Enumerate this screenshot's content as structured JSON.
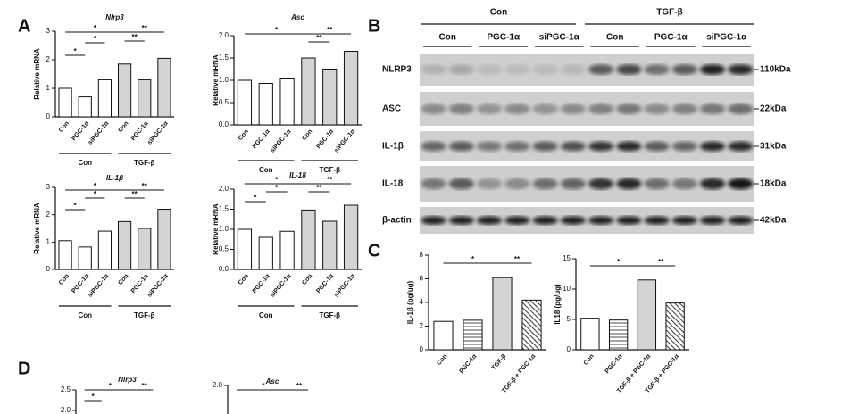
{
  "panel_labels": [
    "A",
    "B",
    "C",
    "D"
  ],
  "chart_data": [
    {
      "type": "bar",
      "title": "Nlrp3",
      "y_label": "Relative mRNA",
      "categories": [
        "Con",
        "PGC-1α",
        "siPGC-1α",
        "Con",
        "PGC-1α",
        "siPGC-1α"
      ],
      "groups": [
        "Con",
        "TGF-β"
      ],
      "values": [
        1.0,
        0.7,
        1.3,
        1.85,
        1.3,
        2.05
      ],
      "bar_fills": [
        "#ffffff",
        "#ffffff",
        "#ffffff",
        "#d4d4d4",
        "#d4d4d4",
        "#d4d4d4"
      ],
      "hatch": [
        "none",
        "none",
        "none",
        "none",
        "none",
        "none"
      ],
      "ylim": [
        0,
        3
      ],
      "yticks": [
        0,
        1,
        2,
        3
      ],
      "annotations": [
        "*",
        "*",
        "*",
        "**",
        "**"
      ]
    },
    {
      "type": "bar",
      "title": "Asc",
      "y_label": "Relative mRNA",
      "categories": [
        "Con",
        "PGC-1α",
        "siPGC-1α",
        "Con",
        "PGC-1α",
        "siPGC-1α"
      ],
      "groups": [
        "Con",
        "TGF-β"
      ],
      "values": [
        1.0,
        0.93,
        1.05,
        1.5,
        1.25,
        1.65
      ],
      "bar_fills": [
        "#ffffff",
        "#ffffff",
        "#ffffff",
        "#d4d4d4",
        "#d4d4d4",
        "#d4d4d4"
      ],
      "hatch": [
        "none",
        "none",
        "none",
        "none",
        "none",
        "none"
      ],
      "ylim": [
        0,
        2
      ],
      "yticks": [
        {
          "value": 0,
          "label": "0.0"
        },
        {
          "value": 0.5,
          "label": "0.5"
        },
        {
          "value": 1,
          "label": "1.0"
        },
        {
          "value": 1.5,
          "label": "1.5"
        },
        {
          "value": 2,
          "label": "2.0"
        }
      ],
      "annotations": [
        "*",
        "**",
        "**"
      ]
    },
    {
      "type": "bar",
      "title": "IL-1β",
      "y_label": "Relative mRNA",
      "categories": [
        "Con",
        "PGC-1α",
        "siPGC-1α",
        "Con",
        "PGC-1α",
        "siPGC-1α"
      ],
      "groups": [
        "Con",
        "TGF-β"
      ],
      "values": [
        1.05,
        0.82,
        1.4,
        1.75,
        1.5,
        2.2
      ],
      "bar_fills": [
        "#ffffff",
        "#ffffff",
        "#ffffff",
        "#d4d4d4",
        "#d4d4d4",
        "#d4d4d4"
      ],
      "hatch": [
        "none",
        "none",
        "none",
        "none",
        "none",
        "none"
      ],
      "ylim": [
        0,
        3
      ],
      "yticks": [
        0,
        1,
        2,
        3
      ],
      "annotations": [
        "*",
        "*",
        "*",
        "**",
        "**"
      ]
    },
    {
      "type": "bar",
      "title": "IL-18",
      "y_label": "Relative mRNA",
      "categories": [
        "Con",
        "PGC-1α",
        "siPGC-1α",
        "Con",
        "PGC-1α",
        "siPGC-1α"
      ],
      "groups": [
        "Con",
        "TGF-β"
      ],
      "values": [
        1.0,
        0.8,
        0.95,
        1.48,
        1.2,
        1.6
      ],
      "bar_fills": [
        "#ffffff",
        "#ffffff",
        "#ffffff",
        "#d4d4d4",
        "#d4d4d4",
        "#d4d4d4"
      ],
      "hatch": [
        "none",
        "none",
        "none",
        "none",
        "none",
        "none"
      ],
      "ylim": [
        0,
        2
      ],
      "yticks": [
        {
          "value": 0,
          "label": "0.0"
        },
        {
          "value": 0.5,
          "label": "0.5"
        },
        {
          "value": 1,
          "label": "1.0"
        },
        {
          "value": 1.5,
          "label": "1.5"
        },
        {
          "value": 2,
          "label": "2.0"
        }
      ],
      "annotations": [
        "*",
        "*",
        "*",
        "**",
        "**"
      ]
    },
    {
      "type": "bar",
      "y_label": "IL-1β (pg/ug)",
      "categories": [
        "Con",
        "PGC-1α",
        "TGF-β",
        "TGF-β + PGC-1α"
      ],
      "values": [
        2.4,
        2.5,
        6.1,
        4.2
      ],
      "bar_fills": [
        "#ffffff",
        "#ffffff",
        "#d4d4d4",
        "#ffffff"
      ],
      "hatch": [
        "none",
        "horizontal",
        "none",
        "diagonal"
      ],
      "ylim": [
        0,
        8
      ],
      "yticks": [
        0,
        2,
        4,
        6,
        8
      ],
      "annotations": [
        "*",
        "**"
      ]
    },
    {
      "type": "bar",
      "y_label": "IL18 (pg/ug)",
      "categories": [
        "Con",
        "PGC-1α",
        "TGF-β + PGC-1α",
        "TGF-β + PGC-1α"
      ],
      "values": [
        5.2,
        4.9,
        11.5,
        7.7
      ],
      "bar_fills": [
        "#ffffff",
        "#ffffff",
        "#d4d4d4",
        "#ffffff"
      ],
      "hatch": [
        "none",
        "horizontal",
        "none",
        "diagonal"
      ],
      "ylim": [
        0,
        15
      ],
      "yticks": [
        0,
        5,
        10,
        15
      ],
      "annotations": [
        "*",
        "**"
      ]
    },
    {
      "type": "bar",
      "title": "Nlrp3",
      "ylim": [
        0,
        2.5
      ],
      "yticks": [
        {
          "value": 2,
          "label": "2.0"
        },
        {
          "value": 2.5,
          "label": "2.5"
        }
      ],
      "annotations": [
        "*",
        "*",
        "**"
      ]
    },
    {
      "type": "bar",
      "title": "Asc",
      "ylim": [
        0,
        2
      ],
      "yticks": [
        {
          "value": 2,
          "label": "2.0"
        }
      ],
      "annotations": [
        "*",
        "**"
      ]
    }
  ],
  "blot": {
    "groups": [
      "Con",
      "TGF-β"
    ],
    "lanes": [
      "Con",
      "PGC-1α",
      "siPGC-1α",
      "Con",
      "PGC-1α",
      "siPGC-1α"
    ],
    "rows": [
      {
        "label": "NLRP3",
        "size": "110kDa"
      },
      {
        "label": "ASC",
        "size": "22kDa"
      },
      {
        "label": "IL-1β",
        "size": "31kDa"
      },
      {
        "label": "IL-18",
        "size": "18kDa"
      },
      {
        "label": "β-actin",
        "size": "42kDa"
      }
    ]
  }
}
